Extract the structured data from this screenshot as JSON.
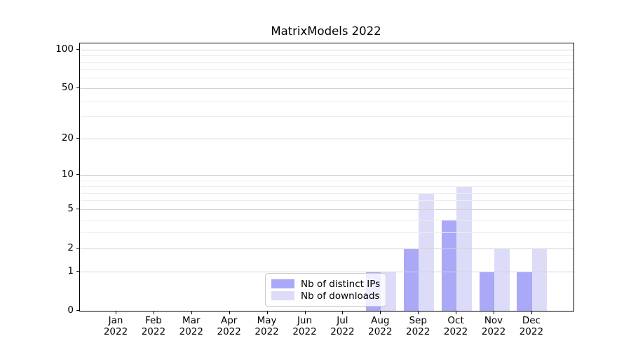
{
  "title": "MatrixModels 2022",
  "chart_data": {
    "type": "bar",
    "title": "MatrixModels 2022",
    "scale": "log1p",
    "grid": "horizontal, major and minor, drawn over bars",
    "legend_position": "lower center, inside axes",
    "categories": [
      {
        "line1": "Jan",
        "line2": "2022"
      },
      {
        "line1": "Feb",
        "line2": "2022"
      },
      {
        "line1": "Mar",
        "line2": "2022"
      },
      {
        "line1": "Apr",
        "line2": "2022"
      },
      {
        "line1": "May",
        "line2": "2022"
      },
      {
        "line1": "Jun",
        "line2": "2022"
      },
      {
        "line1": "Jul",
        "line2": "2022"
      },
      {
        "line1": "Aug",
        "line2": "2022"
      },
      {
        "line1": "Sep",
        "line2": "2022"
      },
      {
        "line1": "Oct",
        "line2": "2022"
      },
      {
        "line1": "Nov",
        "line2": "2022"
      },
      {
        "line1": "Dec",
        "line2": "2022"
      }
    ],
    "series": [
      {
        "name": "Nb of distinct IPs",
        "color": "#a9a9f7",
        "values": [
          0,
          0,
          0,
          0,
          0,
          0,
          0,
          1,
          2,
          4,
          1,
          1
        ]
      },
      {
        "name": "Nb of downloads",
        "color": "#dcdcf9",
        "values": [
          0,
          0,
          0,
          0,
          0,
          0,
          0,
          1,
          7,
          8,
          2,
          2
        ]
      }
    ],
    "ylim": [
      0,
      112
    ],
    "yticks_major": [
      0,
      1,
      2,
      5,
      10,
      20,
      50,
      100
    ],
    "yticks_minor": [
      3,
      4,
      6,
      7,
      8,
      9,
      30,
      40,
      60,
      70,
      80,
      90
    ],
    "xlabel": "",
    "ylabel": ""
  },
  "legend": {
    "items": [
      {
        "label": "Nb of distinct IPs",
        "color": "#a9a9f7"
      },
      {
        "label": "Nb of downloads",
        "color": "#dcdcf9"
      }
    ]
  },
  "colors": {
    "distinct_ips_bar": "#a9a9f7",
    "downloads_bar": "#dcdcf9",
    "grid_major": "#d2d2d2",
    "grid_minor": "#ededed",
    "spine": "#000000",
    "background": "#ffffff"
  }
}
